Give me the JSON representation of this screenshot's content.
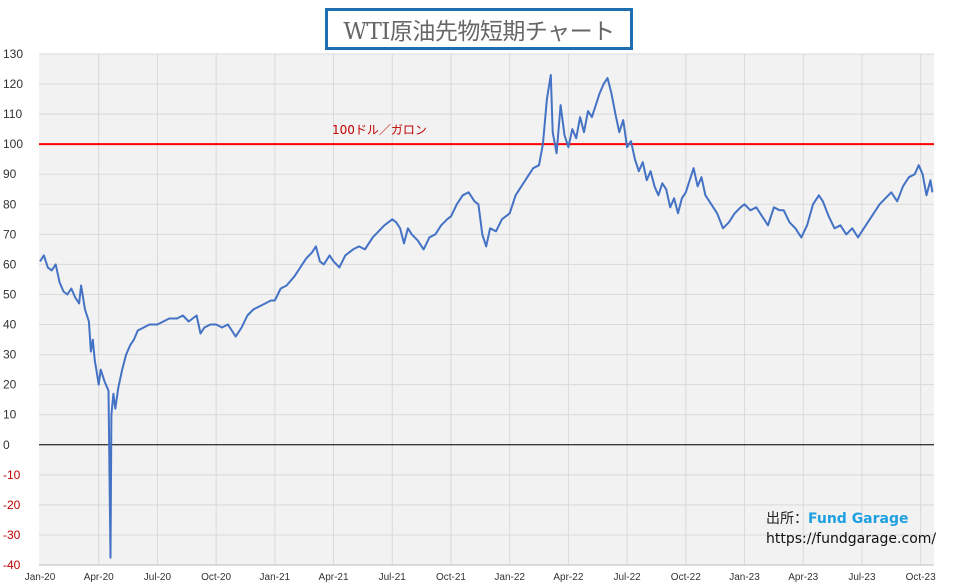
{
  "chart_data": {
    "type": "line",
    "title": "WTI原油先物短期チャート",
    "xlabel": "",
    "ylabel": "",
    "ylim": [
      -40,
      130
    ],
    "yticks": [
      130,
      120,
      110,
      100,
      90,
      80,
      70,
      60,
      50,
      40,
      30,
      20,
      10,
      0,
      -10,
      -20,
      -30,
      -40
    ],
    "xtick_labels": [
      "Jan-20",
      "Apr-20",
      "Jul-20",
      "Oct-20",
      "Jan-21",
      "Apr-21",
      "Jul-21",
      "Oct-21",
      "Jan-22",
      "Apr-22",
      "Jul-22",
      "Oct-22",
      "Jan-23",
      "Apr-23",
      "Jul-23",
      "Oct-23"
    ],
    "x_unit": "months since Jan-20",
    "xlim": [
      0,
      45.7
    ],
    "grid": true,
    "series": [
      {
        "name": "WTI",
        "color": "#4472c4",
        "x": [
          0,
          0.2,
          0.4,
          0.6,
          0.8,
          1.0,
          1.2,
          1.4,
          1.6,
          1.8,
          2.0,
          2.1,
          2.3,
          2.5,
          2.6,
          2.7,
          2.8,
          2.9,
          3.0,
          3.1,
          3.3,
          3.5,
          3.6,
          3.65,
          3.75,
          3.85,
          4.0,
          4.2,
          4.4,
          4.6,
          4.8,
          5.0,
          5.3,
          5.6,
          6.0,
          6.3,
          6.6,
          7.0,
          7.3,
          7.6,
          8.0,
          8.2,
          8.4,
          8.7,
          9.0,
          9.3,
          9.6,
          10.0,
          10.3,
          10.6,
          10.9,
          11.2,
          11.5,
          11.8,
          12.0,
          12.3,
          12.6,
          13.0,
          13.3,
          13.6,
          13.9,
          14.1,
          14.3,
          14.5,
          14.8,
          15.0,
          15.3,
          15.6,
          16.0,
          16.3,
          16.6,
          17.0,
          17.3,
          17.6,
          18.0,
          18.2,
          18.4,
          18.6,
          18.8,
          19.0,
          19.3,
          19.6,
          19.9,
          20.2,
          20.5,
          20.8,
          21.0,
          21.3,
          21.6,
          21.9,
          22.2,
          22.4,
          22.6,
          22.8,
          23.0,
          23.3,
          23.6,
          24.0,
          24.3,
          24.6,
          24.9,
          25.2,
          25.5,
          25.7,
          25.9,
          26.1,
          26.2,
          26.4,
          26.6,
          26.8,
          27.0,
          27.2,
          27.4,
          27.6,
          27.8,
          28.0,
          28.2,
          28.4,
          28.6,
          28.8,
          29.0,
          29.2,
          29.4,
          29.6,
          29.8,
          30.0,
          30.2,
          30.4,
          30.6,
          30.8,
          31.0,
          31.2,
          31.4,
          31.6,
          31.8,
          32.0,
          32.2,
          32.4,
          32.6,
          32.8,
          33.0,
          33.2,
          33.4,
          33.6,
          33.8,
          34.0,
          34.3,
          34.6,
          34.9,
          35.2,
          35.5,
          35.8,
          36.0,
          36.3,
          36.6,
          36.9,
          37.2,
          37.5,
          37.8,
          38.0,
          38.3,
          38.6,
          38.9,
          39.2,
          39.5,
          39.8,
          40.0,
          40.3,
          40.6,
          40.9,
          41.2,
          41.5,
          41.8,
          42.0,
          42.3,
          42.6,
          42.9,
          43.2,
          43.5,
          43.8,
          44.1,
          44.4,
          44.7,
          44.9,
          45.1,
          45.3,
          45.5,
          45.6
        ],
        "values": [
          61,
          63,
          59,
          58,
          60,
          54,
          51,
          50,
          52,
          49,
          47,
          53,
          45,
          41,
          31,
          35,
          28,
          24,
          20,
          25,
          21,
          18,
          -37.6,
          10,
          17,
          12,
          19,
          25,
          30,
          33,
          35,
          38,
          39,
          40,
          40,
          41,
          42,
          42,
          43,
          41,
          43,
          37,
          39,
          40,
          40,
          39,
          40,
          36,
          39,
          43,
          45,
          46,
          47,
          48,
          48,
          52,
          53,
          56,
          59,
          62,
          64,
          66,
          61,
          60,
          63,
          61,
          59,
          63,
          65,
          66,
          65,
          69,
          71,
          73,
          75,
          74,
          72,
          67,
          72,
          70,
          68,
          65,
          69,
          70,
          73,
          75,
          76,
          80,
          83,
          84,
          81,
          80,
          70,
          66,
          72,
          71,
          75,
          77,
          83,
          86,
          89,
          92,
          93,
          100,
          115,
          123,
          104,
          97,
          113,
          103,
          99,
          105,
          102,
          109,
          104,
          111,
          109,
          113,
          117,
          120,
          122,
          117,
          110,
          104,
          108,
          99,
          101,
          95,
          91,
          94,
          88,
          91,
          86,
          83,
          87,
          85,
          79,
          82,
          77,
          82,
          84,
          88,
          92,
          86,
          89,
          83,
          80,
          77,
          72,
          74,
          77,
          79,
          80,
          78,
          79,
          76,
          73,
          79,
          78,
          78,
          74,
          72,
          69,
          73,
          80,
          83,
          81,
          76,
          72,
          73,
          70,
          72,
          69,
          71,
          74,
          77,
          80,
          82,
          84,
          81,
          86,
          89,
          90,
          93,
          90,
          83,
          88,
          84
        ]
      }
    ],
    "reference_lines": [
      {
        "value": 100,
        "color": "#ff0000",
        "label": "100ドル／ガロン"
      },
      {
        "value": 0,
        "color": "#000000"
      }
    ],
    "negative_tick_color": "#c00000"
  },
  "source": {
    "label": "出所：",
    "brand": "Fund Garage",
    "url": "https://fundgarage.com/"
  }
}
